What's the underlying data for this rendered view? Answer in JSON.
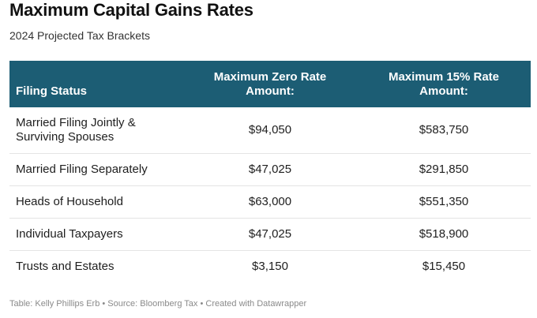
{
  "title": "Maximum Capital Gains Rates",
  "subtitle": "2024 Projected Tax Brackets",
  "chart_data": {
    "type": "table",
    "columns": [
      "Filing Status",
      "Maximum Zero Rate Amount:",
      "Maximum 15% Rate Amount:"
    ],
    "rows": [
      [
        "Married Filing Jointly & Surviving Spouses",
        "$94,050",
        "$583,750"
      ],
      [
        "Married Filing Separately",
        "$47,025",
        "$291,850"
      ],
      [
        "Heads of Household",
        "$63,000",
        "$551,350"
      ],
      [
        "Individual Taxpayers",
        "$47,025",
        "$518,900"
      ],
      [
        "Trusts and Estates",
        "$3,150",
        "$15,450"
      ]
    ]
  },
  "footer": "Table: Kelly Phillips Erb • Source: Bloomberg Tax • Created with Datawrapper",
  "colors": {
    "header_background": "#1c5d74",
    "header_text": "#ffffff"
  }
}
